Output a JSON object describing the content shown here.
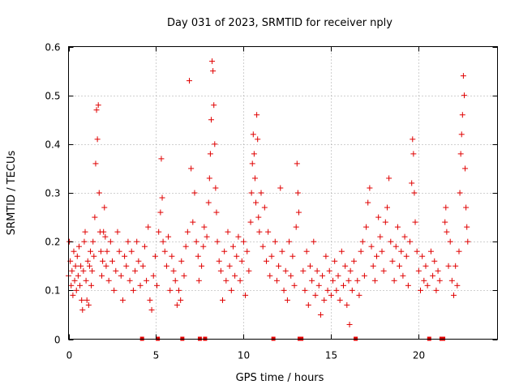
{
  "chart_data": {
    "type": "scatter",
    "title": "Day 031 of 2023, SRMTID for receiver nply",
    "xlabel": "GPS time / hours",
    "ylabel": "SRMTID / TECUs",
    "xlim": [
      0,
      24.5
    ],
    "ylim": [
      0,
      0.6
    ],
    "xticks": [
      0,
      5,
      10,
      15,
      20
    ],
    "xtick_labels": [
      "0",
      "5",
      "10",
      "15",
      "20"
    ],
    "yticks": [
      0,
      0.1,
      0.2,
      0.3,
      0.4,
      0.5,
      0.6
    ],
    "ytick_labels": [
      "0",
      "0.1",
      "0.2",
      "0.3",
      "0.4",
      "0.5",
      "0.6"
    ],
    "grid": true,
    "marker": "plus",
    "color": "#e00000",
    "zero_markers_x": [
      4.2,
      5.1,
      6.5,
      7.5,
      7.8,
      11.7,
      13.2,
      13.3,
      16.4,
      20.6,
      21.3,
      21.4
    ],
    "series": [
      {
        "name": "SRMTID",
        "points": [
          [
            0.0,
            0.13
          ],
          [
            0.05,
            0.2
          ],
          [
            0.1,
            0.16
          ],
          [
            0.15,
            0.11
          ],
          [
            0.2,
            0.14
          ],
          [
            0.25,
            0.09
          ],
          [
            0.3,
            0.18
          ],
          [
            0.35,
            0.12
          ],
          [
            0.4,
            0.15
          ],
          [
            0.45,
            0.1
          ],
          [
            0.5,
            0.17
          ],
          [
            0.55,
            0.13
          ],
          [
            0.6,
            0.19
          ],
          [
            0.65,
            0.11
          ],
          [
            0.7,
            0.15
          ],
          [
            0.75,
            0.08
          ],
          [
            0.8,
            0.06
          ],
          [
            0.85,
            0.14
          ],
          [
            0.9,
            0.2
          ],
          [
            0.95,
            0.22
          ],
          [
            1.0,
            0.12
          ],
          [
            1.05,
            0.08
          ],
          [
            1.1,
            0.16
          ],
          [
            1.15,
            0.07
          ],
          [
            1.2,
            0.15
          ],
          [
            1.25,
            0.18
          ],
          [
            1.3,
            0.11
          ],
          [
            1.35,
            0.14
          ],
          [
            1.4,
            0.2
          ],
          [
            1.45,
            0.17
          ],
          [
            1.5,
            0.25
          ],
          [
            1.55,
            0.36
          ],
          [
            1.6,
            0.47
          ],
          [
            1.65,
            0.41
          ],
          [
            1.7,
            0.48
          ],
          [
            1.75,
            0.3
          ],
          [
            1.8,
            0.22
          ],
          [
            1.85,
            0.18
          ],
          [
            1.9,
            0.13
          ],
          [
            1.95,
            0.16
          ],
          [
            2.0,
            0.22
          ],
          [
            2.05,
            0.27
          ],
          [
            2.1,
            0.21
          ],
          [
            2.15,
            0.15
          ],
          [
            2.2,
            0.18
          ],
          [
            2.3,
            0.12
          ],
          [
            2.4,
            0.2
          ],
          [
            2.5,
            0.16
          ],
          [
            2.6,
            0.1
          ],
          [
            2.7,
            0.14
          ],
          [
            2.8,
            0.22
          ],
          [
            2.9,
            0.18
          ],
          [
            3.0,
            0.13
          ],
          [
            3.1,
            0.08
          ],
          [
            3.2,
            0.17
          ],
          [
            3.3,
            0.15
          ],
          [
            3.4,
            0.2
          ],
          [
            3.5,
            0.12
          ],
          [
            3.6,
            0.18
          ],
          [
            3.7,
            0.1
          ],
          [
            3.8,
            0.14
          ],
          [
            3.9,
            0.2
          ],
          [
            4.0,
            0.16
          ],
          [
            4.1,
            0.11
          ],
          [
            4.25,
            0.15
          ],
          [
            4.35,
            0.19
          ],
          [
            4.45,
            0.12
          ],
          [
            4.55,
            0.23
          ],
          [
            4.65,
            0.08
          ],
          [
            4.75,
            0.06
          ],
          [
            4.85,
            0.13
          ],
          [
            4.95,
            0.17
          ],
          [
            5.05,
            0.11
          ],
          [
            5.15,
            0.22
          ],
          [
            5.25,
            0.26
          ],
          [
            5.3,
            0.37
          ],
          [
            5.35,
            0.29
          ],
          [
            5.4,
            0.2
          ],
          [
            5.5,
            0.18
          ],
          [
            5.6,
            0.15
          ],
          [
            5.7,
            0.21
          ],
          [
            5.8,
            0.1
          ],
          [
            5.9,
            0.17
          ],
          [
            6.0,
            0.14
          ],
          [
            6.1,
            0.12
          ],
          [
            6.2,
            0.07
          ],
          [
            6.3,
            0.1
          ],
          [
            6.4,
            0.08
          ],
          [
            6.45,
            0.16
          ],
          [
            6.6,
            0.13
          ],
          [
            6.7,
            0.19
          ],
          [
            6.8,
            0.22
          ],
          [
            6.9,
            0.53
          ],
          [
            7.0,
            0.35
          ],
          [
            7.1,
            0.24
          ],
          [
            7.2,
            0.3
          ],
          [
            7.3,
            0.2
          ],
          [
            7.4,
            0.17
          ],
          [
            7.45,
            0.12
          ],
          [
            7.6,
            0.15
          ],
          [
            7.7,
            0.19
          ],
          [
            7.75,
            0.23
          ],
          [
            7.9,
            0.21
          ],
          [
            8.0,
            0.28
          ],
          [
            8.05,
            0.33
          ],
          [
            8.1,
            0.38
          ],
          [
            8.15,
            0.45
          ],
          [
            8.2,
            0.57
          ],
          [
            8.25,
            0.55
          ],
          [
            8.3,
            0.48
          ],
          [
            8.35,
            0.4
          ],
          [
            8.4,
            0.31
          ],
          [
            8.45,
            0.26
          ],
          [
            8.5,
            0.2
          ],
          [
            8.6,
            0.16
          ],
          [
            8.7,
            0.14
          ],
          [
            8.8,
            0.08
          ],
          [
            8.9,
            0.18
          ],
          [
            9.0,
            0.12
          ],
          [
            9.1,
            0.22
          ],
          [
            9.2,
            0.15
          ],
          [
            9.3,
            0.1
          ],
          [
            9.4,
            0.19
          ],
          [
            9.5,
            0.13
          ],
          [
            9.6,
            0.17
          ],
          [
            9.7,
            0.21
          ],
          [
            9.8,
            0.12
          ],
          [
            9.9,
            0.16
          ],
          [
            10.0,
            0.2
          ],
          [
            10.1,
            0.09
          ],
          [
            10.2,
            0.18
          ],
          [
            10.3,
            0.14
          ],
          [
            10.4,
            0.24
          ],
          [
            10.45,
            0.3
          ],
          [
            10.5,
            0.36
          ],
          [
            10.55,
            0.42
          ],
          [
            10.6,
            0.38
          ],
          [
            10.65,
            0.33
          ],
          [
            10.7,
            0.28
          ],
          [
            10.75,
            0.46
          ],
          [
            10.8,
            0.41
          ],
          [
            10.85,
            0.25
          ],
          [
            10.9,
            0.22
          ],
          [
            11.0,
            0.3
          ],
          [
            11.1,
            0.19
          ],
          [
            11.2,
            0.27
          ],
          [
            11.3,
            0.16
          ],
          [
            11.4,
            0.22
          ],
          [
            11.5,
            0.13
          ],
          [
            11.6,
            0.17
          ],
          [
            11.8,
            0.2
          ],
          [
            11.9,
            0.12
          ],
          [
            12.0,
            0.15
          ],
          [
            12.1,
            0.31
          ],
          [
            12.2,
            0.18
          ],
          [
            12.3,
            0.1
          ],
          [
            12.4,
            0.14
          ],
          [
            12.5,
            0.08
          ],
          [
            12.6,
            0.2
          ],
          [
            12.7,
            0.13
          ],
          [
            12.8,
            0.17
          ],
          [
            12.9,
            0.11
          ],
          [
            13.0,
            0.23
          ],
          [
            13.05,
            0.36
          ],
          [
            13.1,
            0.3
          ],
          [
            13.15,
            0.26
          ],
          [
            13.4,
            0.14
          ],
          [
            13.5,
            0.1
          ],
          [
            13.6,
            0.18
          ],
          [
            13.7,
            0.07
          ],
          [
            13.8,
            0.15
          ],
          [
            13.9,
            0.12
          ],
          [
            14.0,
            0.2
          ],
          [
            14.1,
            0.09
          ],
          [
            14.2,
            0.14
          ],
          [
            14.3,
            0.11
          ],
          [
            14.4,
            0.05
          ],
          [
            14.5,
            0.13
          ],
          [
            14.6,
            0.08
          ],
          [
            14.7,
            0.17
          ],
          [
            14.8,
            0.1
          ],
          [
            14.9,
            0.14
          ],
          [
            15.0,
            0.09
          ],
          [
            15.1,
            0.12
          ],
          [
            15.2,
            0.16
          ],
          [
            15.3,
            0.1
          ],
          [
            15.4,
            0.13
          ],
          [
            15.5,
            0.08
          ],
          [
            15.6,
            0.18
          ],
          [
            15.7,
            0.11
          ],
          [
            15.8,
            0.15
          ],
          [
            15.9,
            0.07
          ],
          [
            16.0,
            0.12
          ],
          [
            16.05,
            0.03
          ],
          [
            16.1,
            0.14
          ],
          [
            16.2,
            0.1
          ],
          [
            16.3,
            0.16
          ],
          [
            16.5,
            0.12
          ],
          [
            16.6,
            0.09
          ],
          [
            16.7,
            0.18
          ],
          [
            16.8,
            0.2
          ],
          [
            16.9,
            0.13
          ],
          [
            17.0,
            0.23
          ],
          [
            17.1,
            0.28
          ],
          [
            17.2,
            0.31
          ],
          [
            17.3,
            0.19
          ],
          [
            17.4,
            0.15
          ],
          [
            17.5,
            0.12
          ],
          [
            17.6,
            0.17
          ],
          [
            17.7,
            0.25
          ],
          [
            17.8,
            0.21
          ],
          [
            17.9,
            0.18
          ],
          [
            18.0,
            0.14
          ],
          [
            18.1,
            0.24
          ],
          [
            18.2,
            0.27
          ],
          [
            18.3,
            0.33
          ],
          [
            18.4,
            0.2
          ],
          [
            18.5,
            0.16
          ],
          [
            18.6,
            0.12
          ],
          [
            18.7,
            0.19
          ],
          [
            18.8,
            0.23
          ],
          [
            18.9,
            0.15
          ],
          [
            19.0,
            0.18
          ],
          [
            19.1,
            0.13
          ],
          [
            19.2,
            0.21
          ],
          [
            19.3,
            0.17
          ],
          [
            19.4,
            0.11
          ],
          [
            19.5,
            0.2
          ],
          [
            19.6,
            0.32
          ],
          [
            19.65,
            0.41
          ],
          [
            19.7,
            0.38
          ],
          [
            19.75,
            0.3
          ],
          [
            19.8,
            0.24
          ],
          [
            19.9,
            0.18
          ],
          [
            20.0,
            0.14
          ],
          [
            20.1,
            0.1
          ],
          [
            20.2,
            0.17
          ],
          [
            20.3,
            0.12
          ],
          [
            20.4,
            0.15
          ],
          [
            20.5,
            0.11
          ],
          [
            20.7,
            0.18
          ],
          [
            20.8,
            0.13
          ],
          [
            20.9,
            0.16
          ],
          [
            21.0,
            0.1
          ],
          [
            21.1,
            0.14
          ],
          [
            21.2,
            0.12
          ],
          [
            21.5,
            0.24
          ],
          [
            21.55,
            0.27
          ],
          [
            21.6,
            0.22
          ],
          [
            21.7,
            0.15
          ],
          [
            21.8,
            0.2
          ],
          [
            21.9,
            0.12
          ],
          [
            22.0,
            0.09
          ],
          [
            22.1,
            0.15
          ],
          [
            22.2,
            0.11
          ],
          [
            22.3,
            0.18
          ],
          [
            22.35,
            0.3
          ],
          [
            22.4,
            0.38
          ],
          [
            22.45,
            0.42
          ],
          [
            22.5,
            0.46
          ],
          [
            22.55,
            0.54
          ],
          [
            22.6,
            0.5
          ],
          [
            22.65,
            0.35
          ],
          [
            22.7,
            0.27
          ],
          [
            22.75,
            0.23
          ],
          [
            22.8,
            0.2
          ]
        ]
      }
    ]
  }
}
